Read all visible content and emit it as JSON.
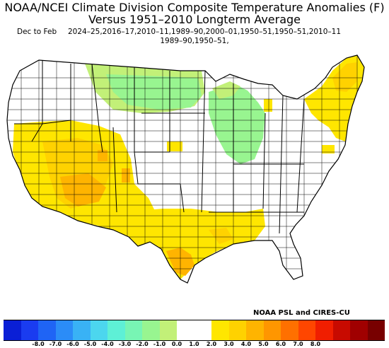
{
  "title_line1": "NOAA/NCEI Climate Division Composite Temperature Anomalies (F)",
  "title_line2": "Versus 1951–2010 Longterm Average",
  "subtitle_label": "Dec to Feb",
  "subtitle_years_line1": "2024–25,2016–17,2010–11,1989–90,2000–01,1950–51,1950–51,2010–11",
  "subtitle_years_line2": "1989–90,1950–51,",
  "credit": "NOAA PSL and CIRES-CU",
  "legend": {
    "colors": [
      "#0a1fd6",
      "#1a3cf0",
      "#1f64f5",
      "#2b8cf7",
      "#39b2f5",
      "#4cd6ee",
      "#5ef0d6",
      "#78f5b4",
      "#98f590",
      "#c2f078",
      "#ffffff",
      "#ffffff",
      "#ffe600",
      "#ffd200",
      "#ffb400",
      "#ff9600",
      "#ff7000",
      "#ff4600",
      "#f01e00",
      "#c80a00",
      "#a00000",
      "#780000"
    ],
    "ticks": [
      "-8.0",
      "-7.0",
      "-6.0",
      "-5.0",
      "-4.0",
      "-3.0",
      "-2.0",
      "-1.0",
      "0.0",
      "1.0",
      "2.0",
      "3.0",
      "4.0",
      "5.0",
      "6.0",
      "7.0",
      "8.0"
    ]
  },
  "map_colors": {
    "neutral": "#ffffff",
    "yellow": "#ffe600",
    "gold": "#ffd200",
    "orange": "#ffb400",
    "green": "#98f590",
    "light_green": "#c2f078"
  }
}
